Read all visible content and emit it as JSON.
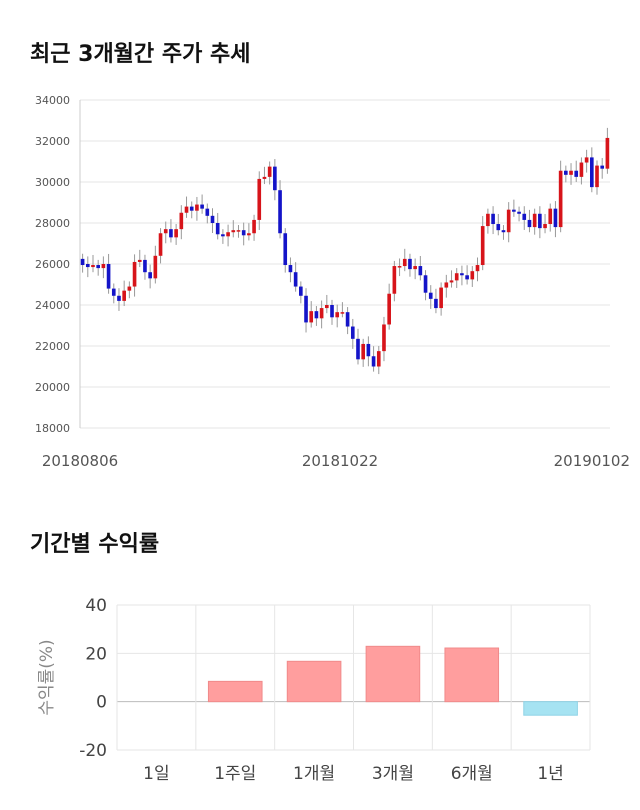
{
  "titles": {
    "price_trend": "최근 3개월간 주가 추세",
    "returns": "기간별 수익률"
  },
  "colors": {
    "up": "#d7141a",
    "down": "#1414c8",
    "bar_positive": "#ff9e9e",
    "bar_negative": "#a6e3f2",
    "grid": "#e6e6e6"
  },
  "chart_data": [
    {
      "type": "candlestick",
      "title": "최근 3개월간 주가 추세",
      "ylim": [
        18000,
        34000
      ],
      "yticks": [
        18000,
        20000,
        22000,
        24000,
        26000,
        28000,
        30000,
        32000,
        34000
      ],
      "xtick_labels": [
        "20180806",
        "20181022",
        "20190102"
      ],
      "grid": true,
      "close": [
        25950,
        25850,
        25950,
        25800,
        26000,
        24800,
        24450,
        24200,
        24700,
        24900,
        26100,
        26200,
        25600,
        25300,
        26400,
        27500,
        27700,
        27300,
        27700,
        28500,
        28800,
        28600,
        28900,
        28700,
        28350,
        28000,
        27450,
        27350,
        27550,
        27650,
        27650,
        27400,
        27500,
        28150,
        30150,
        30250,
        30750,
        29600,
        27500,
        25950,
        25600,
        24900,
        24450,
        23150,
        23700,
        23350,
        23850,
        24000,
        23400,
        23650,
        23650,
        22950,
        22350,
        21350,
        22100,
        21500,
        21000,
        21750,
        23050,
        24550,
        25900,
        25900,
        26250,
        25750,
        25900,
        25450,
        24600,
        24300,
        23850,
        24850,
        25100,
        25200,
        25550,
        25450,
        25250,
        25650,
        25950,
        27850,
        28450,
        27950,
        27650,
        27550,
        28650,
        28550,
        28450,
        28150,
        27800,
        28450,
        27750,
        27950,
        28700,
        27800,
        30550,
        30350,
        30550,
        30250,
        30950,
        31200,
        29750,
        30800,
        30650,
        32150
      ],
      "open": [
        26250,
        26000,
        25850,
        25950,
        25800,
        26000,
        24800,
        24450,
        24200,
        24700,
        24900,
        26100,
        26200,
        25600,
        25300,
        26400,
        27500,
        27700,
        27300,
        27700,
        28500,
        28800,
        28600,
        28900,
        28700,
        28350,
        28000,
        27450,
        27350,
        27550,
        27650,
        27650,
        27400,
        27500,
        28150,
        30150,
        30250,
        30750,
        29600,
        27500,
        25950,
        25600,
        24900,
        24450,
        23150,
        23700,
        23350,
        23850,
        24000,
        23400,
        23650,
        23650,
        22950,
        22350,
        21350,
        22100,
        21500,
        21000,
        21750,
        23050,
        24550,
        25900,
        25900,
        26250,
        25750,
        25900,
        25450,
        24600,
        24300,
        23850,
        24850,
        25100,
        25200,
        25550,
        25450,
        25250,
        25650,
        25950,
        27850,
        28450,
        27950,
        27650,
        27550,
        28650,
        28550,
        28450,
        28150,
        27800,
        28450,
        27750,
        27950,
        28700,
        27800,
        30550,
        30350,
        30550,
        30250,
        30950,
        31200,
        29750,
        30800,
        30650
      ]
    },
    {
      "type": "bar",
      "categories": [
        "1일",
        "1주일",
        "1개월",
        "3개월",
        "6개월",
        "1년"
      ],
      "values": [
        0,
        8.4,
        16.7,
        22.9,
        22.2,
        -5.6
      ],
      "ylabel": "수익률(%)",
      "ylim": [
        -20,
        40
      ],
      "yticks": [
        -20,
        0,
        20,
        40
      ],
      "grid": true
    }
  ]
}
